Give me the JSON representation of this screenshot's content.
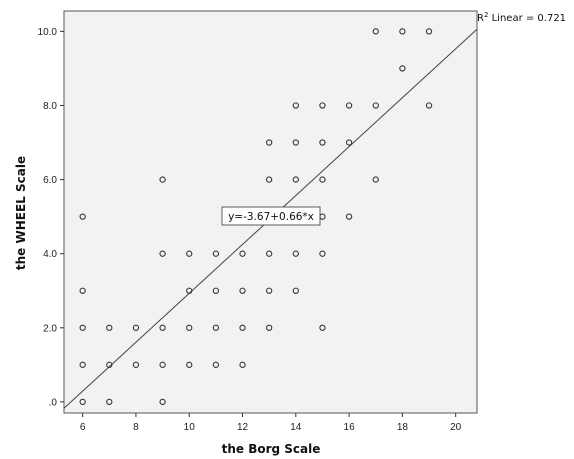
{
  "chart_data": {
    "type": "scatter",
    "xlabel": "the Borg Scale",
    "ylabel": "the WHEEL Scale",
    "xlim": [
      5.3,
      20.8
    ],
    "ylim": [
      -0.3,
      10.55
    ],
    "x_ticks": [
      6,
      8,
      10,
      12,
      14,
      16,
      18,
      20
    ],
    "y_ticks": [
      0,
      2,
      4,
      6,
      8,
      10
    ],
    "x_tick_labels": [
      "6",
      "8",
      "10",
      "12",
      "14",
      "16",
      "18",
      "20"
    ],
    "y_tick_labels": [
      ".0",
      "2.0",
      "4.0",
      "6.0",
      "8.0",
      "10.0"
    ],
    "grid": false,
    "plot_background": "#f2f2f2",
    "marker_color": "#333333",
    "line_color": "#444444",
    "points": [
      {
        "x": 6,
        "y": 0
      },
      {
        "x": 6,
        "y": 1
      },
      {
        "x": 6,
        "y": 2
      },
      {
        "x": 6,
        "y": 3
      },
      {
        "x": 6,
        "y": 5
      },
      {
        "x": 7,
        "y": 0
      },
      {
        "x": 7,
        "y": 1
      },
      {
        "x": 7,
        "y": 2
      },
      {
        "x": 8,
        "y": 1
      },
      {
        "x": 8,
        "y": 2
      },
      {
        "x": 9,
        "y": 0
      },
      {
        "x": 9,
        "y": 1
      },
      {
        "x": 9,
        "y": 2
      },
      {
        "x": 9,
        "y": 4
      },
      {
        "x": 9,
        "y": 6
      },
      {
        "x": 10,
        "y": 1
      },
      {
        "x": 10,
        "y": 2
      },
      {
        "x": 10,
        "y": 3
      },
      {
        "x": 10,
        "y": 4
      },
      {
        "x": 11,
        "y": 1
      },
      {
        "x": 11,
        "y": 2
      },
      {
        "x": 11,
        "y": 3
      },
      {
        "x": 11,
        "y": 4
      },
      {
        "x": 12,
        "y": 1
      },
      {
        "x": 12,
        "y": 2
      },
      {
        "x": 12,
        "y": 3
      },
      {
        "x": 12,
        "y": 4
      },
      {
        "x": 13,
        "y": 2
      },
      {
        "x": 13,
        "y": 3
      },
      {
        "x": 13,
        "y": 4
      },
      {
        "x": 13,
        "y": 6
      },
      {
        "x": 13,
        "y": 7
      },
      {
        "x": 14,
        "y": 3
      },
      {
        "x": 14,
        "y": 4
      },
      {
        "x": 14,
        "y": 6
      },
      {
        "x": 14,
        "y": 7
      },
      {
        "x": 14,
        "y": 8
      },
      {
        "x": 15,
        "y": 2
      },
      {
        "x": 15,
        "y": 4
      },
      {
        "x": 15,
        "y": 5
      },
      {
        "x": 15,
        "y": 6
      },
      {
        "x": 15,
        "y": 7
      },
      {
        "x": 15,
        "y": 8
      },
      {
        "x": 16,
        "y": 5
      },
      {
        "x": 16,
        "y": 7
      },
      {
        "x": 16,
        "y": 8
      },
      {
        "x": 17,
        "y": 6
      },
      {
        "x": 17,
        "y": 8
      },
      {
        "x": 17,
        "y": 10
      },
      {
        "x": 18,
        "y": 9
      },
      {
        "x": 18,
        "y": 10
      },
      {
        "x": 19,
        "y": 8
      },
      {
        "x": 19,
        "y": 10
      }
    ],
    "fit_line": {
      "intercept": -3.67,
      "slope": 0.66
    },
    "equation_label": "y=-3.67+0.66*x",
    "r2_label": {
      "prefix": "R",
      "sup": "2",
      "suffix": " Linear = 0.721"
    }
  }
}
